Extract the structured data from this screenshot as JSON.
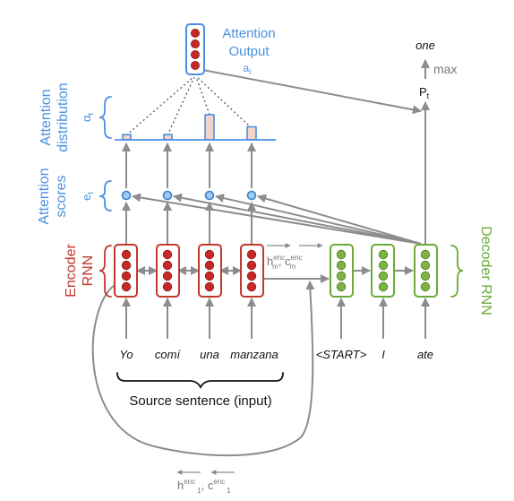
{
  "attention_output": {
    "line1": "Attention",
    "line2": "Output",
    "symbol": "a",
    "sub": "t"
  },
  "attention_distribution": {
    "line1": "Attention",
    "line2": "distribution",
    "symbol": "α",
    "sub": "t",
    "values": [
      0.12,
      0.12,
      0.58,
      0.3
    ]
  },
  "attention_scores": {
    "line1": "Attention",
    "line2": "scores",
    "symbol": "e",
    "sub": "t"
  },
  "encoder": {
    "line1": "Encoder",
    "line2": "RNN",
    "words": [
      "Yo",
      "comí",
      "una",
      "manzana"
    ]
  },
  "decoder": {
    "label": "Decoder RNN",
    "words": [
      "<START>",
      "I",
      "ate"
    ]
  },
  "state_label": {
    "h": "h",
    "c": "c",
    "sup": "enc",
    "sub_last": "m",
    "sub_first": "1",
    "sep": ", "
  },
  "output": {
    "word": "one",
    "max_label": "max",
    "p": "P",
    "p_sub": "t"
  },
  "source_caption": "Source sentence (input)",
  "colors": {
    "encoder": "#c0392b",
    "decoder": "#6aaa3a",
    "attention": "#4a90e2",
    "arrows": "#8c8c8c"
  }
}
